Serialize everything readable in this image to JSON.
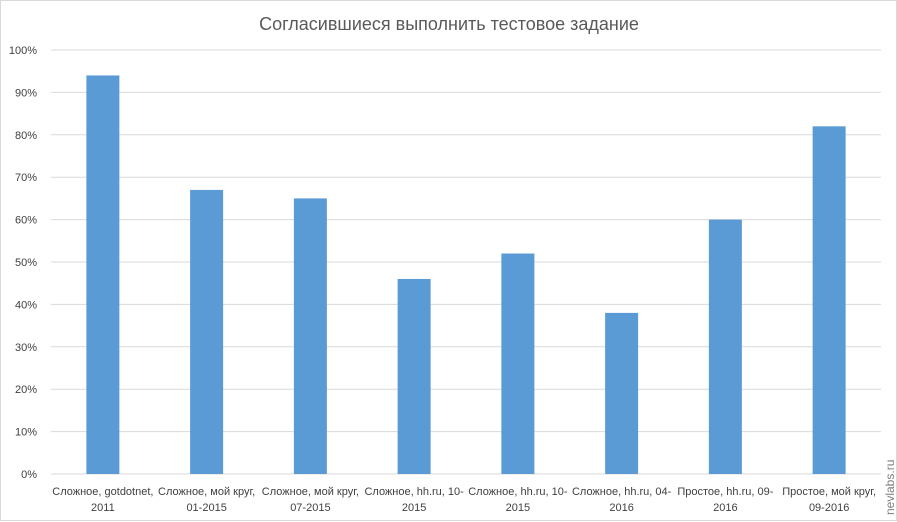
{
  "chart_data": {
    "type": "bar",
    "title": "Согласившиеся выполнить тестовое задание",
    "xlabel": "",
    "ylabel": "",
    "ylim": [
      0,
      100
    ],
    "y_ticks": [
      "0%",
      "10%",
      "20%",
      "30%",
      "40%",
      "50%",
      "60%",
      "70%",
      "80%",
      "90%",
      "100%"
    ],
    "grid": true,
    "categories": [
      [
        "Сложное, gotdotnet,",
        "2011"
      ],
      [
        "Сложное, мой круг,",
        "01-2015"
      ],
      [
        "Сложное, мой круг,",
        "07-2015"
      ],
      [
        "Сложное, hh.ru, 10-",
        "2015"
      ],
      [
        "Сложное, hh.ru, 10-",
        "2015"
      ],
      [
        "Сложное, hh.ru, 04-",
        "2016"
      ],
      [
        "Простое, hh.ru, 09-",
        "2016"
      ],
      [
        "Простое, мой круг,",
        "09-2016"
      ]
    ],
    "values": [
      94,
      67,
      65,
      46,
      52,
      38,
      60,
      82
    ],
    "bar_color": "#5b9bd5",
    "grid_color": "#d9d9d9",
    "watermark": "nevlabs.ru"
  }
}
